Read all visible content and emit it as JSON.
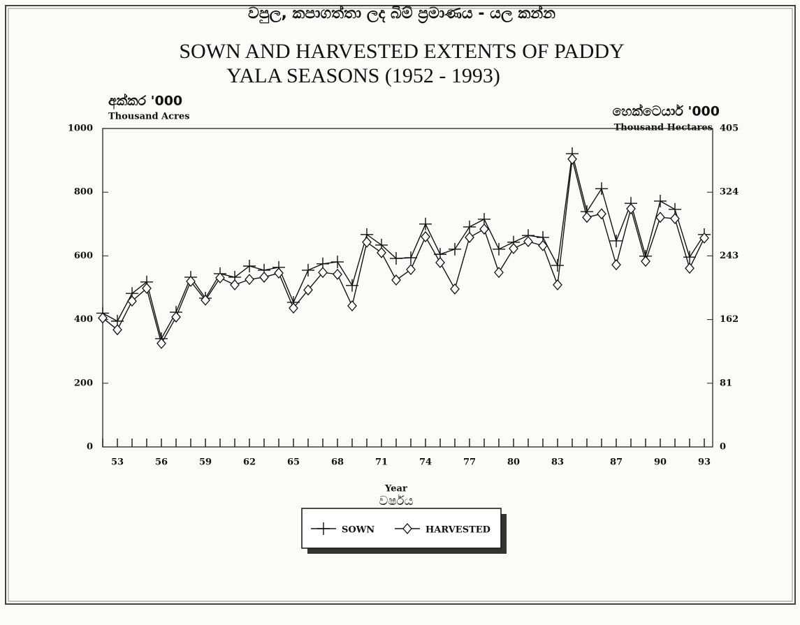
{
  "chart_data": {
    "type": "line",
    "title_si": "වපුල, කපාගත්තා ලද බිම් ප්‍රමාණය - යල කන්න",
    "title": "SOWN AND HARVESTED EXTENTS OF PADDY",
    "subtitle": "YALA SEASONS (1952 - 1993)",
    "y_unit_si": "අක්කර '000",
    "y_label": "Thousand Acres",
    "y2_unit_si": "හෙක්ටෙයාර් '000",
    "y2_label": "Thousand Hectares",
    "x_label": "Year",
    "x_label_si": "වර්ෂය",
    "categories": [
      null,
      "53",
      null,
      null,
      "56",
      null,
      null,
      "59",
      null,
      null,
      "62",
      null,
      null,
      "65",
      null,
      null,
      "68",
      null,
      null,
      "71",
      null,
      null,
      "74",
      null,
      null,
      "77",
      null,
      null,
      "80",
      null,
      null,
      "83",
      null,
      null,
      null,
      "87",
      null,
      null,
      "90",
      null,
      null,
      "93"
    ],
    "series": [
      {
        "name": "SOWN",
        "color": "#111111",
        "marker": "plus",
        "values": [
          420,
          395,
          482,
          518,
          340,
          423,
          533,
          467,
          544,
          533,
          568,
          555,
          564,
          454,
          555,
          575,
          581,
          507,
          667,
          634,
          592,
          594,
          700,
          605,
          621,
          691,
          715,
          621,
          643,
          664,
          658,
          570,
          921,
          739,
          811,
          647,
          765,
          599,
          772,
          746,
          596,
          667
        ]
      },
      {
        "name": "HARVESTED",
        "color": "#111111",
        "marker": "diamond",
        "values": [
          405,
          368,
          458,
          498,
          325,
          408,
          520,
          461,
          531,
          509,
          526,
          533,
          546,
          436,
          493,
          548,
          542,
          443,
          643,
          610,
          524,
          557,
          660,
          579,
          496,
          658,
          684,
          548,
          623,
          645,
          632,
          509,
          904,
          721,
          732,
          572,
          748,
          583,
          721,
          717,
          561,
          656
        ]
      }
    ],
    "ylim": [
      0,
      1000
    ],
    "yticks": [
      0,
      200,
      400,
      600,
      800,
      1000
    ],
    "y2lim": [
      0,
      405
    ],
    "y2ticks": [
      0,
      81,
      162,
      243,
      324,
      405
    ],
    "grid": false,
    "legend": "bottom"
  }
}
